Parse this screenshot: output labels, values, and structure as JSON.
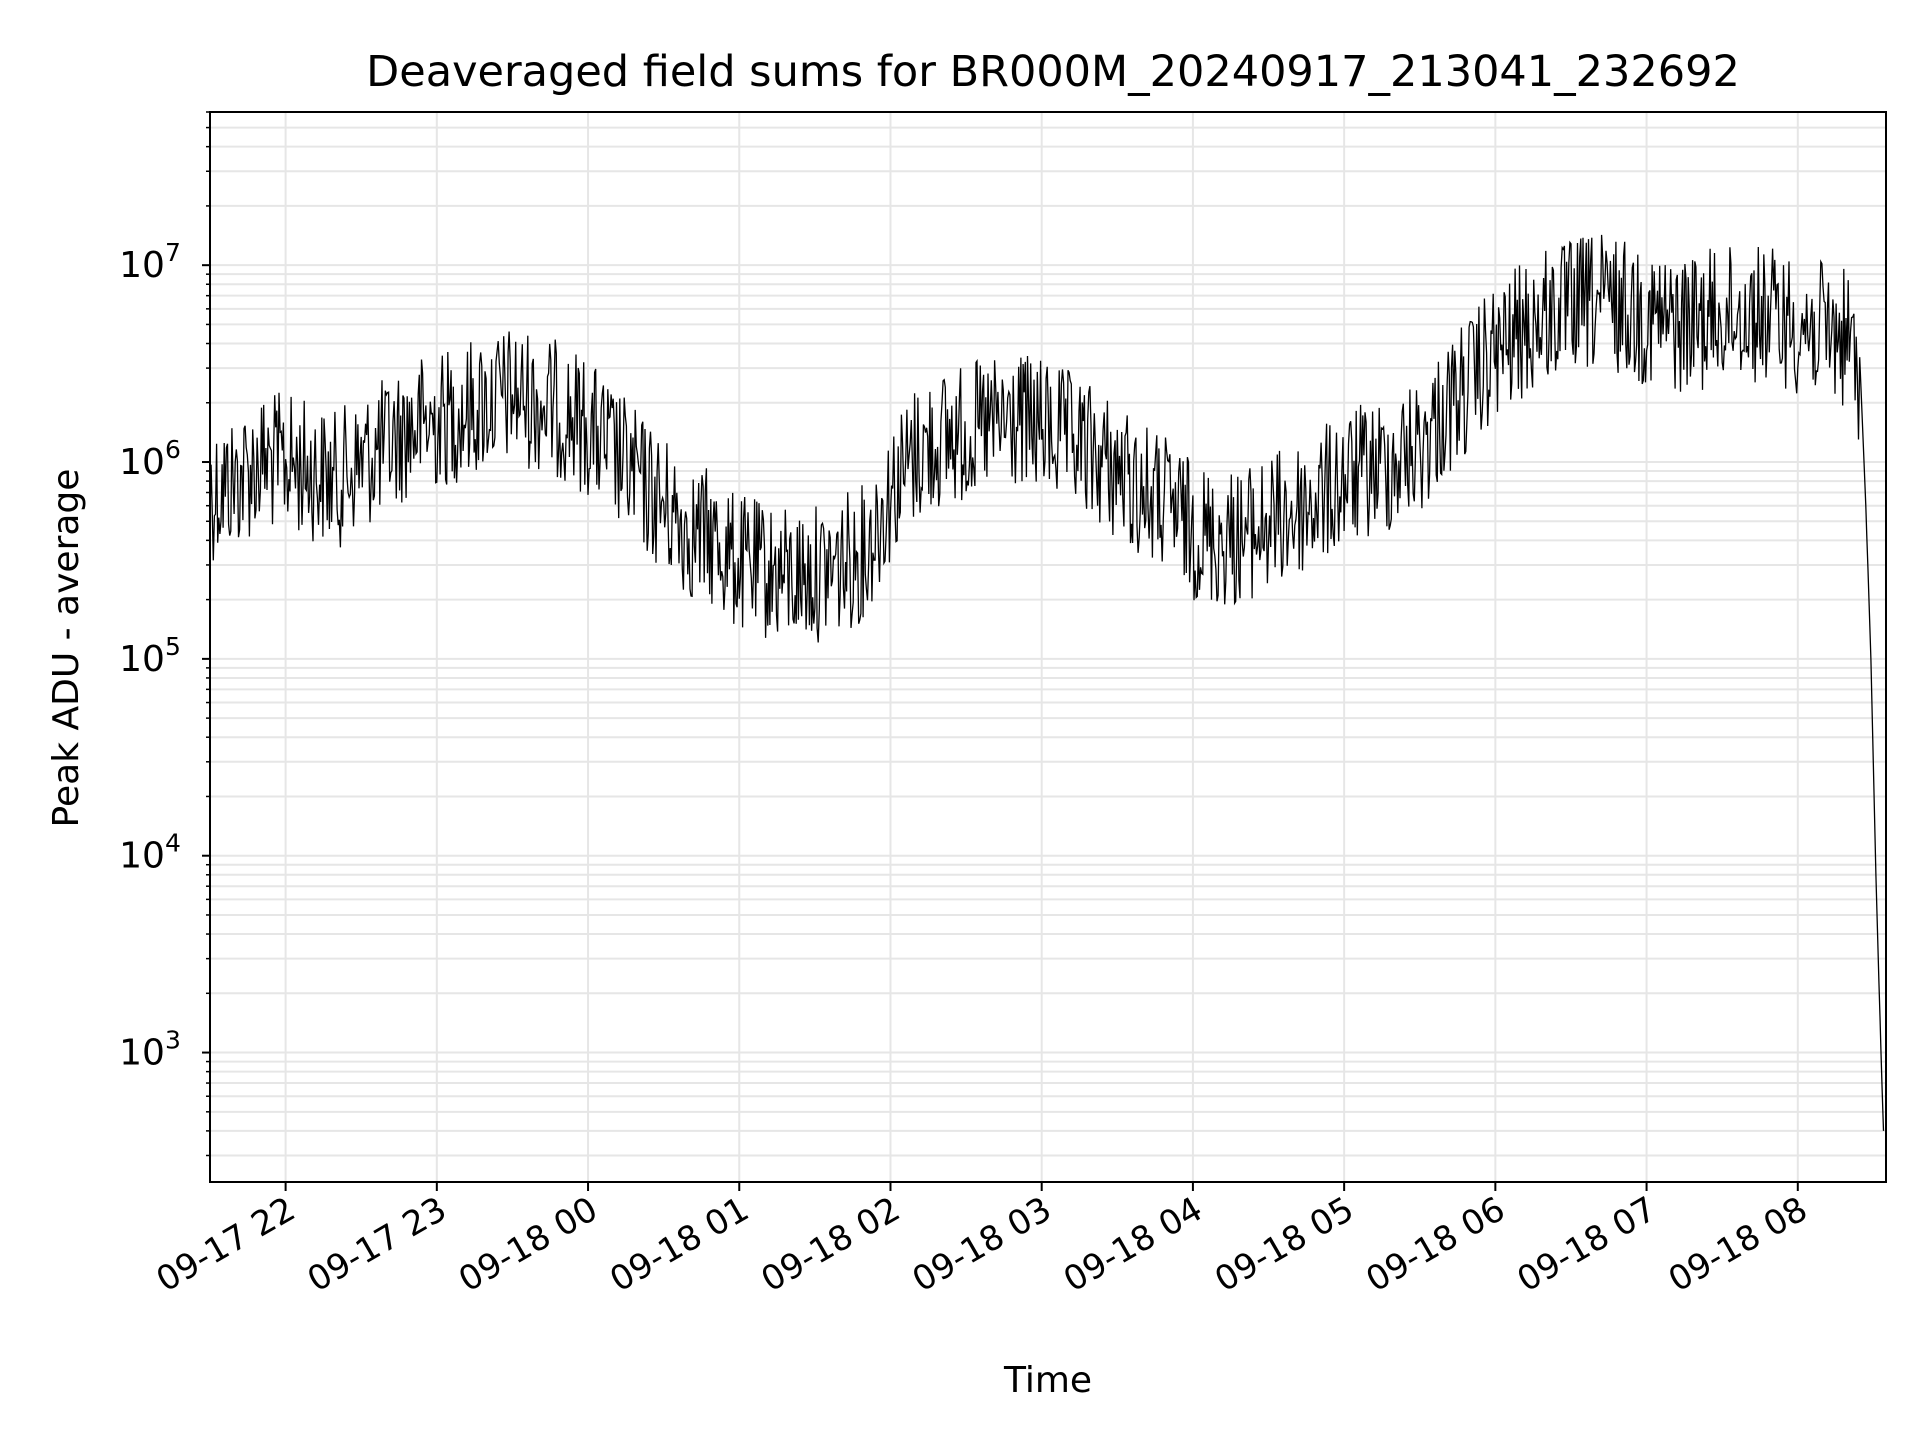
{
  "chart_data": {
    "type": "line",
    "title": "Deaveraged field sums for BR000M_20240917_213041_232692",
    "xlabel": "Time",
    "ylabel": "Peak ADU - average",
    "yscale": "log",
    "ylim": [
      220,
      60000000
    ],
    "xlim": [
      "2024-09-17 21:30",
      "2024-09-18 08:35"
    ],
    "grid": true,
    "line_color": "#000000",
    "x_ticks": [
      {
        "t": "2024-09-17 22:00",
        "label": "09-17 22"
      },
      {
        "t": "2024-09-17 23:00",
        "label": "09-17 23"
      },
      {
        "t": "2024-09-18 00:00",
        "label": "09-18 00"
      },
      {
        "t": "2024-09-18 01:00",
        "label": "09-18 01"
      },
      {
        "t": "2024-09-18 02:00",
        "label": "09-18 02"
      },
      {
        "t": "2024-09-18 03:00",
        "label": "09-18 03"
      },
      {
        "t": "2024-09-18 04:00",
        "label": "09-18 04"
      },
      {
        "t": "2024-09-18 05:00",
        "label": "09-18 05"
      },
      {
        "t": "2024-09-18 06:00",
        "label": "09-18 06"
      },
      {
        "t": "2024-09-18 07:00",
        "label": "09-18 07"
      },
      {
        "t": "2024-09-18 08:00",
        "label": "09-18 08"
      }
    ],
    "y_ticks": [
      {
        "value": 1000,
        "base": "10",
        "exp": "3"
      },
      {
        "value": 10000,
        "base": "10",
        "exp": "4"
      },
      {
        "value": 100000,
        "base": "10",
        "exp": "5"
      },
      {
        "value": 1000000,
        "base": "10",
        "exp": "6"
      },
      {
        "value": 10000000,
        "base": "10",
        "exp": "7"
      }
    ],
    "series": [
      {
        "x": [
          "2024-09-17 21:30",
          "2024-09-17 21:40",
          "2024-09-17 21:50",
          "2024-09-17 22:00",
          "2024-09-17 22:10",
          "2024-09-17 22:20",
          "2024-09-17 22:30",
          "2024-09-17 22:40",
          "2024-09-17 22:50",
          "2024-09-17 23:00",
          "2024-09-17 23:10",
          "2024-09-17 23:20",
          "2024-09-17 23:30",
          "2024-09-17 23:40",
          "2024-09-17 23:50",
          "2024-09-18 00:00",
          "2024-09-18 00:10",
          "2024-09-18 00:20",
          "2024-09-18 00:30",
          "2024-09-18 00:40",
          "2024-09-18 00:50",
          "2024-09-18 01:00",
          "2024-09-18 01:10",
          "2024-09-18 01:20",
          "2024-09-18 01:30",
          "2024-09-18 01:40",
          "2024-09-18 01:50",
          "2024-09-18 02:00",
          "2024-09-18 02:10",
          "2024-09-18 02:20",
          "2024-09-18 02:30",
          "2024-09-18 02:40",
          "2024-09-18 02:50",
          "2024-09-18 03:00",
          "2024-09-18 03:10",
          "2024-09-18 03:20",
          "2024-09-18 03:30",
          "2024-09-18 03:40",
          "2024-09-18 03:50",
          "2024-09-18 04:00",
          "2024-09-18 04:10",
          "2024-09-18 04:20",
          "2024-09-18 04:30",
          "2024-09-18 04:40",
          "2024-09-18 04:50",
          "2024-09-18 05:00",
          "2024-09-18 05:10",
          "2024-09-18 05:20",
          "2024-09-18 05:30",
          "2024-09-18 05:40",
          "2024-09-18 05:50",
          "2024-09-18 06:00",
          "2024-09-18 06:10",
          "2024-09-18 06:20",
          "2024-09-18 06:30",
          "2024-09-18 06:40",
          "2024-09-18 06:50",
          "2024-09-18 07:00",
          "2024-09-18 07:10",
          "2024-09-18 07:20",
          "2024-09-18 07:30",
          "2024-09-18 07:40",
          "2024-09-18 07:50",
          "2024-09-18 08:00",
          "2024-09-18 08:10",
          "2024-09-18 08:20",
          "2024-09-18 08:25",
          "2024-09-18 08:27",
          "2024-09-18 08:29",
          "2024-09-18 08:31",
          "2024-09-18 08:33",
          "2024-09-18 08:34"
        ],
        "y": [
          700000,
          800000,
          1000000,
          1000000,
          900000,
          800000,
          1000000,
          1200000,
          1500000,
          1600000,
          1800000,
          2000000,
          2200000,
          2000000,
          1800000,
          1500000,
          1100000,
          800000,
          600000,
          450000,
          400000,
          300000,
          280000,
          260000,
          270000,
          300000,
          350000,
          700000,
          1100000,
          1300000,
          1400000,
          1500000,
          1600000,
          1500000,
          1300000,
          1100000,
          900000,
          700000,
          600000,
          450000,
          400000,
          420000,
          480000,
          550000,
          650000,
          800000,
          900000,
          1000000,
          1200000,
          1800000,
          2500000,
          3500000,
          4500000,
          5500000,
          6000000,
          6500000,
          6200000,
          5500000,
          5000000,
          5200000,
          5500000,
          5800000,
          5500000,
          5000000,
          4600000,
          4200000,
          2500000,
          600000,
          100000,
          8000,
          1000,
          400
        ]
      }
    ]
  }
}
